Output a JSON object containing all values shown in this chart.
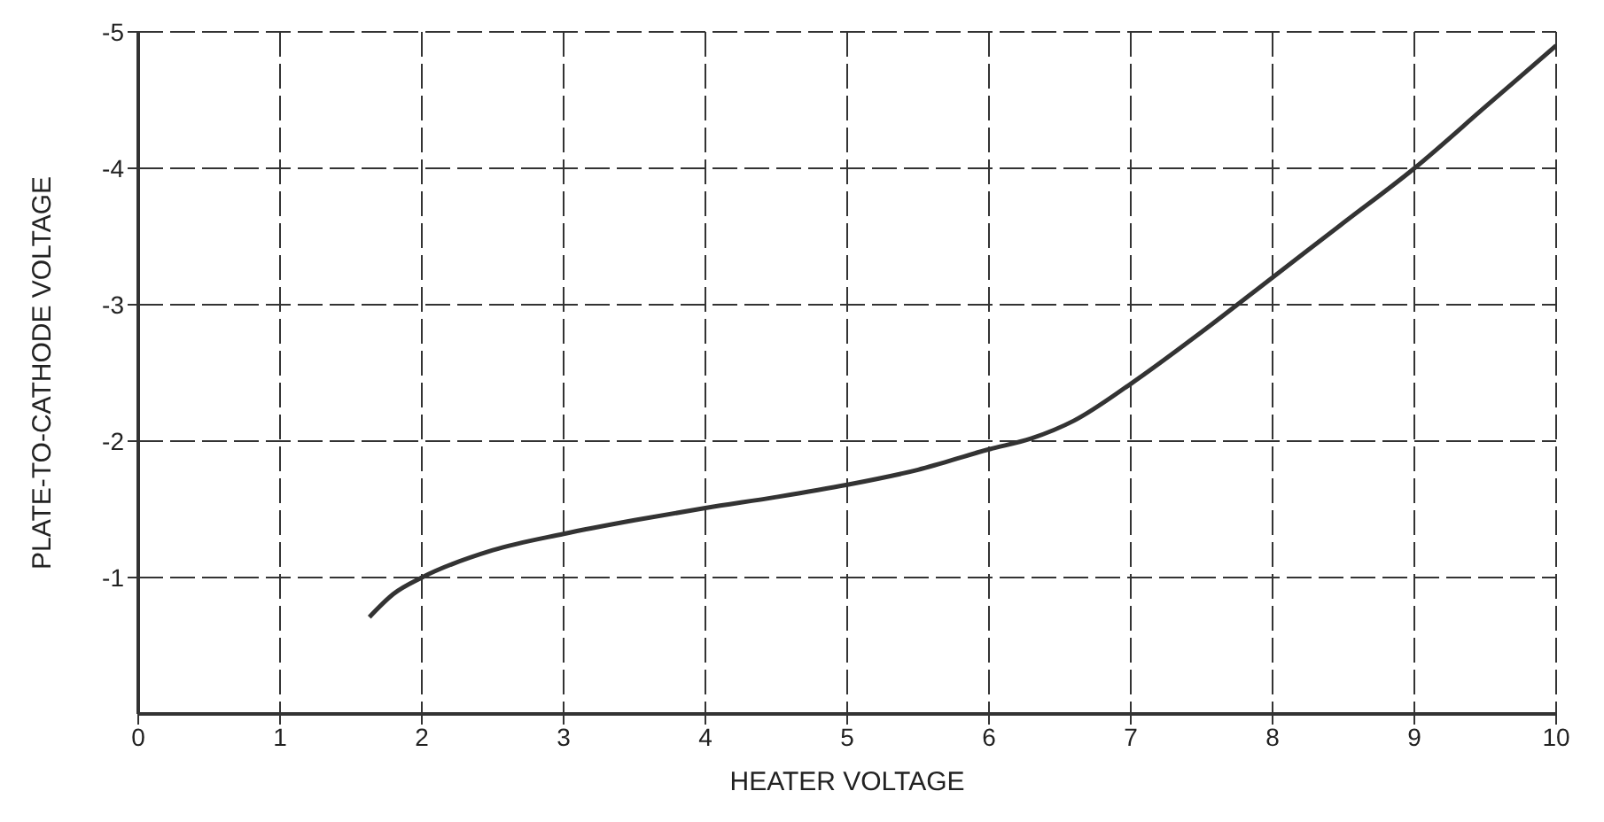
{
  "chart_data": {
    "type": "line",
    "xlabel": "HEATER VOLTAGE",
    "ylabel": "PLATE-TO-CATHODE VOLTAGE",
    "xlim": [
      0,
      10
    ],
    "xticks": [
      0,
      1,
      2,
      3,
      4,
      5,
      6,
      7,
      8,
      9,
      10
    ],
    "ylim": [
      0,
      -5
    ],
    "yticks": [
      -1,
      -2,
      -3,
      -4,
      -5
    ],
    "grid": true,
    "marker": "none",
    "line_style": "solid",
    "series": [
      {
        "color": "#333333",
        "x": [
          1.63,
          1.8,
          2,
          2.5,
          3,
          3.5,
          4,
          4.5,
          5,
          5.5,
          6,
          6.3,
          6.6,
          7,
          7.5,
          8,
          8.5,
          9,
          9.5,
          10
        ],
        "values": [
          -0.71,
          -0.88,
          -1,
          -1.2,
          -1.32,
          -1.42,
          -1.51,
          -1.59,
          -1.68,
          -1.79,
          -1.94,
          -2.02,
          -2.15,
          -2.42,
          -2.8,
          -3.2,
          -3.6,
          -4.0,
          -4.45,
          -4.9
        ]
      }
    ]
  }
}
